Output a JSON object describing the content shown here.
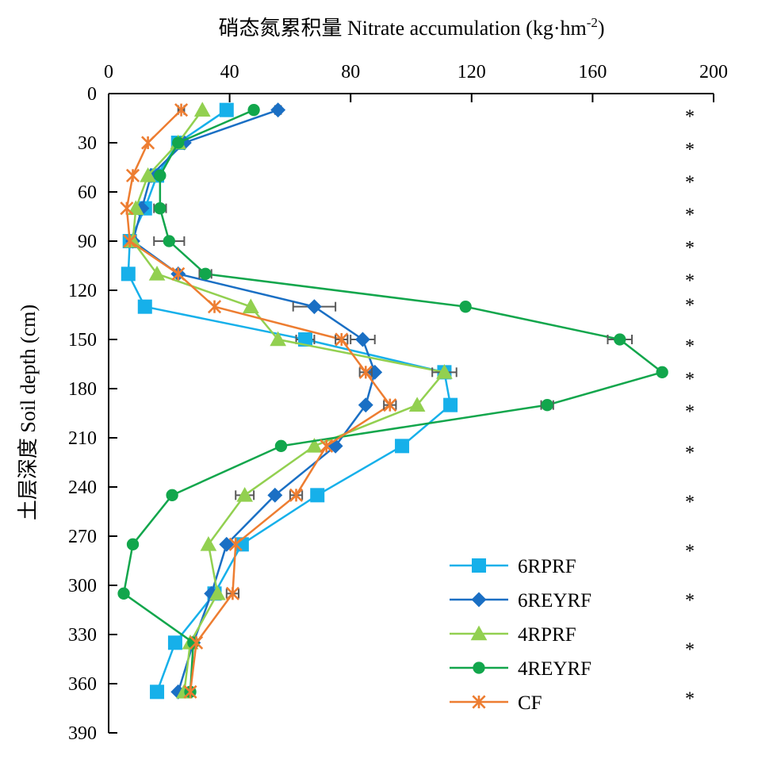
{
  "chart_data": {
    "type": "line",
    "title": "",
    "xlabel": "硝态氮累积量 Nitrate accumulation (kg·hm",
    "xlabel_sup": "-2",
    "xlabel_end": ")",
    "ylabel": "土层深度 Soil depth (cm)",
    "x_position": "top",
    "xlim": [
      0,
      200
    ],
    "ylim": [
      0,
      390
    ],
    "y_inverted": true,
    "xticks": [
      0,
      40,
      80,
      120,
      160,
      200
    ],
    "xtick_labels": [
      "0",
      "40",
      "80",
      "120",
      "160",
      "200"
    ],
    "yticks": [
      0,
      30,
      60,
      90,
      120,
      150,
      180,
      210,
      240,
      270,
      300,
      330,
      360,
      390
    ],
    "ytick_labels": [
      "0",
      "30",
      "60",
      "90",
      "120",
      "150",
      "180",
      "210",
      "240",
      "270",
      "300",
      "330",
      "360",
      "390"
    ],
    "grid": false,
    "legend_position": "bottom-right",
    "series": [
      {
        "name": "6RPRF",
        "color": "#16b0ea",
        "marker": "square",
        "points": [
          {
            "x": 39,
            "y": 10,
            "err": 0
          },
          {
            "x": 23,
            "y": 30,
            "err": 0
          },
          {
            "x": 16,
            "y": 50,
            "err": 0
          },
          {
            "x": 12,
            "y": 70,
            "err": 0
          },
          {
            "x": 7,
            "y": 90,
            "err": 0
          },
          {
            "x": 6.5,
            "y": 110,
            "err": 0
          },
          {
            "x": 12,
            "y": 130,
            "err": 0
          },
          {
            "x": 65,
            "y": 150,
            "err": 3
          },
          {
            "x": 111,
            "y": 170,
            "err": 2
          },
          {
            "x": 113,
            "y": 190,
            "err": 0
          },
          {
            "x": 97,
            "y": 215,
            "err": 0
          },
          {
            "x": 69,
            "y": 245,
            "err": 0
          },
          {
            "x": 44,
            "y": 275,
            "err": 0
          },
          {
            "x": 35,
            "y": 305,
            "err": 0
          },
          {
            "x": 22,
            "y": 335,
            "err": 0
          },
          {
            "x": 16,
            "y": 365,
            "err": 0
          }
        ]
      },
      {
        "name": "6REYRF",
        "color": "#1a6fc4",
        "marker": "diamond",
        "points": [
          {
            "x": 56,
            "y": 10,
            "err": 1
          },
          {
            "x": 25,
            "y": 30,
            "err": 0
          },
          {
            "x": 14,
            "y": 50,
            "err": 0
          },
          {
            "x": 11,
            "y": 70,
            "err": 0
          },
          {
            "x": 8,
            "y": 90,
            "err": 0
          },
          {
            "x": 23,
            "y": 110,
            "err": 0
          },
          {
            "x": 68,
            "y": 130,
            "err": 7
          },
          {
            "x": 84,
            "y": 150,
            "err": 4
          },
          {
            "x": 88,
            "y": 170,
            "err": 0
          },
          {
            "x": 85,
            "y": 190,
            "err": 0
          },
          {
            "x": 75,
            "y": 215,
            "err": 0
          },
          {
            "x": 55,
            "y": 245,
            "err": 0
          },
          {
            "x": 39,
            "y": 275,
            "err": 0
          },
          {
            "x": 34,
            "y": 305,
            "err": 0
          },
          {
            "x": 28,
            "y": 335,
            "err": 0
          },
          {
            "x": 23,
            "y": 365,
            "err": 0
          }
        ]
      },
      {
        "name": "4RPRF",
        "color": "#92d050",
        "marker": "triangle",
        "points": [
          {
            "x": 31,
            "y": 10,
            "err": 0
          },
          {
            "x": 23,
            "y": 30,
            "err": 0
          },
          {
            "x": 13,
            "y": 50,
            "err": 0
          },
          {
            "x": 9,
            "y": 70,
            "err": 0
          },
          {
            "x": 8,
            "y": 90,
            "err": 0
          },
          {
            "x": 16,
            "y": 110,
            "err": 0
          },
          {
            "x": 47,
            "y": 130,
            "err": 0
          },
          {
            "x": 56,
            "y": 150,
            "err": 0
          },
          {
            "x": 111,
            "y": 170,
            "err": 4
          },
          {
            "x": 102,
            "y": 190,
            "err": 0
          },
          {
            "x": 68,
            "y": 215,
            "err": 0
          },
          {
            "x": 45,
            "y": 245,
            "err": 3
          },
          {
            "x": 33,
            "y": 275,
            "err": 0
          },
          {
            "x": 36,
            "y": 305,
            "err": 0
          },
          {
            "x": 27,
            "y": 335,
            "err": 0
          },
          {
            "x": 25,
            "y": 365,
            "err": 0
          }
        ]
      },
      {
        "name": "4REYRF",
        "color": "#12a64c",
        "marker": "circle",
        "points": [
          {
            "x": 48,
            "y": 10,
            "err": 0
          },
          {
            "x": 23,
            "y": 30,
            "err": 0
          },
          {
            "x": 17,
            "y": 50,
            "err": 0
          },
          {
            "x": 17,
            "y": 70,
            "err": 2
          },
          {
            "x": 20,
            "y": 90,
            "err": 5
          },
          {
            "x": 32,
            "y": 110,
            "err": 2
          },
          {
            "x": 118,
            "y": 130,
            "err": 1
          },
          {
            "x": 169,
            "y": 150,
            "err": 4
          },
          {
            "x": 183,
            "y": 170,
            "err": 1
          },
          {
            "x": 145,
            "y": 190,
            "err": 2
          },
          {
            "x": 57,
            "y": 215,
            "err": 0
          },
          {
            "x": 21,
            "y": 245,
            "err": 0
          },
          {
            "x": 8,
            "y": 275,
            "err": 0
          },
          {
            "x": 5,
            "y": 305,
            "err": 0
          },
          {
            "x": 28,
            "y": 335,
            "err": 0
          },
          {
            "x": 27,
            "y": 365,
            "err": 0
          }
        ]
      },
      {
        "name": "CF",
        "color": "#ed7d31",
        "marker": "asterisk",
        "points": [
          {
            "x": 24,
            "y": 10,
            "err": 1
          },
          {
            "x": 13,
            "y": 30,
            "err": 0
          },
          {
            "x": 8,
            "y": 50,
            "err": 0
          },
          {
            "x": 6,
            "y": 70,
            "err": 0
          },
          {
            "x": 7,
            "y": 90,
            "err": 0
          },
          {
            "x": 23,
            "y": 110,
            "err": 0
          },
          {
            "x": 35,
            "y": 130,
            "err": 0
          },
          {
            "x": 77,
            "y": 150,
            "err": 2
          },
          {
            "x": 85,
            "y": 170,
            "err": 2
          },
          {
            "x": 93,
            "y": 190,
            "err": 2
          },
          {
            "x": 72,
            "y": 215,
            "err": 0
          },
          {
            "x": 62,
            "y": 245,
            "err": 2
          },
          {
            "x": 42,
            "y": 275,
            "err": 0
          },
          {
            "x": 41,
            "y": 305,
            "err": 2
          },
          {
            "x": 29,
            "y": 335,
            "err": 0
          },
          {
            "x": 27,
            "y": 365,
            "err": 0
          }
        ]
      }
    ],
    "significance": {
      "symbol": "*",
      "depths": [
        10,
        30,
        50,
        70,
        90,
        110,
        125,
        150,
        170,
        190,
        215,
        245,
        275,
        305,
        335,
        365
      ]
    }
  },
  "colors": {
    "axis": "#000000",
    "error_bar": "#595959"
  }
}
